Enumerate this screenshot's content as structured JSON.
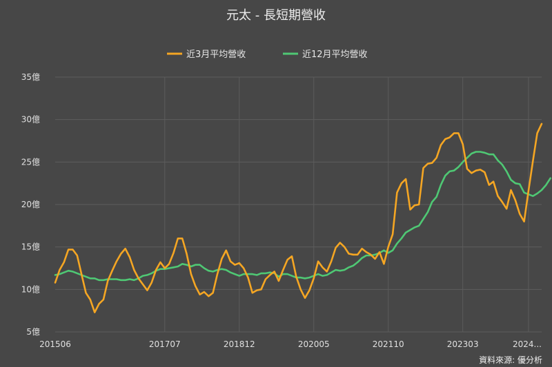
{
  "chart_data": {
    "type": "line",
    "title": "元太 - 長短期營收",
    "source": "資料來源: 優分析",
    "ylim": [
      5,
      35
    ],
    "y_ticks": [
      "5億",
      "10億",
      "15億",
      "20億",
      "25億",
      "30億",
      "35億"
    ],
    "y_tick_values": [
      5,
      10,
      15,
      20,
      25,
      30,
      35
    ],
    "x_tick_labels": [
      "201506",
      "201707",
      "201812",
      "202005",
      "202110",
      "202303",
      "2024..."
    ],
    "x_tick_index": [
      0,
      25,
      42,
      59,
      76,
      93,
      108
    ],
    "legend_position": "top-center",
    "grid": true,
    "series": [
      {
        "name": "近3月平均營收",
        "color": "#f5a623",
        "values": [
          10.8,
          12.3,
          13.2,
          14.7,
          14.7,
          14.0,
          11.8,
          9.6,
          8.8,
          7.3,
          8.3,
          8.8,
          11.0,
          12.2,
          13.3,
          14.2,
          14.8,
          13.8,
          12.3,
          11.3,
          10.6,
          9.9,
          10.8,
          12.3,
          13.2,
          12.5,
          13.0,
          14.3,
          16.0,
          16.0,
          14.2,
          11.8,
          10.4,
          9.4,
          9.7,
          9.2,
          9.6,
          11.8,
          13.6,
          14.6,
          13.3,
          12.9,
          13.1,
          12.5,
          11.4,
          9.6,
          9.9,
          10.0,
          11.2,
          11.7,
          12.1,
          11.0,
          12.3,
          13.5,
          13.9,
          11.5,
          10.0,
          9.0,
          9.9,
          11.3,
          13.3,
          12.6,
          12.1,
          13.3,
          14.9,
          15.5,
          15.0,
          14.2,
          14.1,
          14.1,
          14.8,
          14.4,
          14.1,
          13.6,
          14.4,
          13.0,
          15.0,
          16.5,
          21.4,
          22.5,
          23.0,
          19.4,
          19.9,
          20.0,
          24.3,
          24.8,
          24.9,
          25.5,
          27.0,
          27.7,
          27.9,
          28.4,
          28.4,
          27.1,
          24.2,
          23.7,
          24.0,
          24.1,
          23.8,
          22.3,
          22.7,
          21.0,
          20.3,
          19.5,
          21.7,
          20.5,
          18.9,
          18.0,
          21.6,
          25.1,
          28.4,
          29.5
        ]
      },
      {
        "name": "近12月平均營收",
        "color": "#4fc874",
        "values": [
          11.7,
          11.8,
          12.0,
          12.2,
          12.1,
          11.9,
          11.7,
          11.5,
          11.3,
          11.3,
          11.1,
          11.1,
          11.2,
          11.2,
          11.2,
          11.1,
          11.1,
          11.2,
          11.1,
          11.3,
          11.6,
          11.7,
          11.9,
          12.2,
          12.4,
          12.4,
          12.5,
          12.6,
          12.7,
          13.0,
          12.9,
          12.7,
          12.9,
          12.9,
          12.5,
          12.2,
          12.1,
          12.3,
          12.4,
          12.3,
          12.0,
          11.8,
          11.6,
          11.8,
          11.8,
          11.8,
          11.7,
          11.9,
          11.9,
          12.0,
          11.9,
          11.5,
          11.8,
          11.8,
          11.6,
          11.4,
          11.4,
          11.3,
          11.4,
          11.6,
          11.8,
          11.6,
          11.7,
          12.0,
          12.3,
          12.2,
          12.3,
          12.6,
          12.8,
          13.2,
          13.7,
          14.0,
          14.0,
          14.1,
          14.3,
          14.6,
          14.3,
          14.6,
          15.4,
          16.0,
          16.7,
          17.0,
          17.3,
          17.5,
          18.3,
          19.1,
          20.3,
          20.9,
          22.3,
          23.4,
          23.9,
          24.0,
          24.4,
          25.0,
          25.5,
          26.0,
          26.2,
          26.2,
          26.1,
          25.9,
          25.9,
          25.2,
          24.7,
          23.9,
          22.9,
          22.5,
          22.4,
          21.4,
          21.2,
          21.0,
          21.3,
          21.7,
          22.3,
          23.1
        ]
      }
    ]
  }
}
